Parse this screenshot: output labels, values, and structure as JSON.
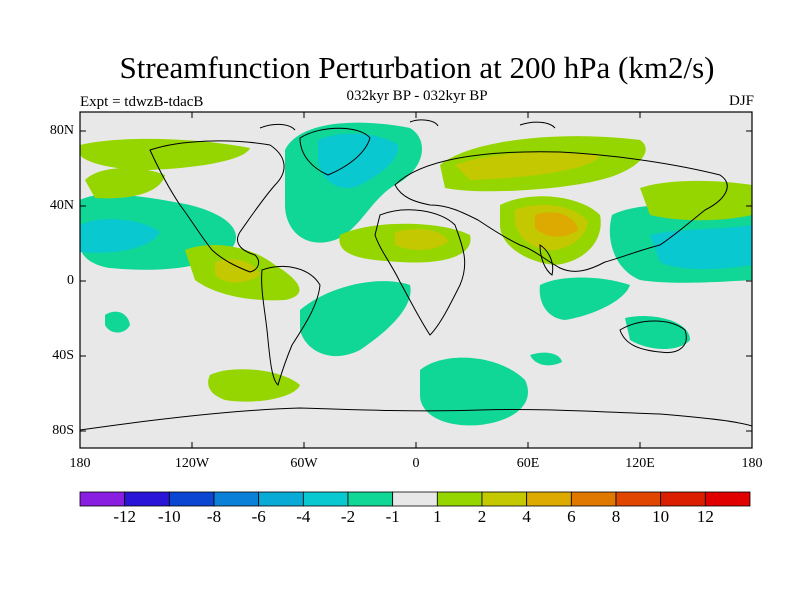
{
  "title": "Streamfunction Perturbation at 200 hPa (km2/s)",
  "subtitle": "032kyr BP - 032kyr BP",
  "left_label": "Expt = tdwzB-tdacB",
  "right_label": "DJF",
  "lat_labels": [
    "80N",
    "40N",
    "0",
    "40S",
    "80S"
  ],
  "lon_labels": [
    "180",
    "120W",
    "60W",
    "0",
    "60E",
    "120E",
    "180"
  ],
  "colorbar": {
    "labels": [
      "-12",
      "-10",
      "-8",
      "-6",
      "-4",
      "-2",
      "-1",
      "1",
      "2",
      "4",
      "6",
      "8",
      "10",
      "12"
    ],
    "colors": [
      "#8a1ee0",
      "#2a14d8",
      "#0a46d2",
      "#0a80d8",
      "#0aaad6",
      "#0ac8d0",
      "#10d696",
      "#e8e8e8",
      "#96d600",
      "#c4c800",
      "#dcaa00",
      "#e07800",
      "#e04600",
      "#dc1e00",
      "#e00000"
    ]
  },
  "colors": {
    "background": "#e8e8e8",
    "land_outline": "#000000"
  }
}
